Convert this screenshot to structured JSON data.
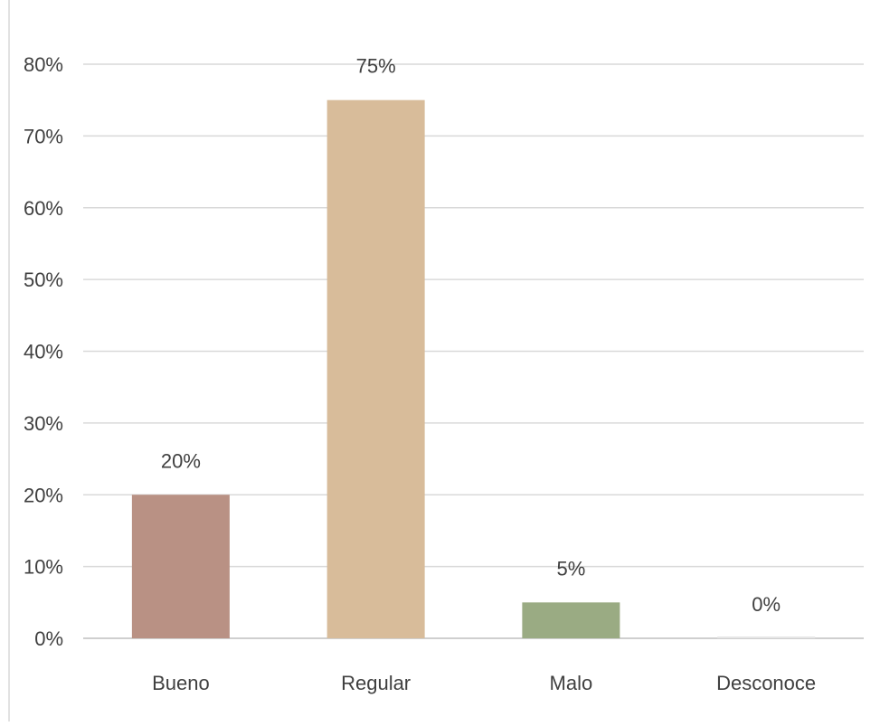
{
  "chart_data": {
    "type": "bar",
    "categories": [
      "Bueno",
      "Regular",
      "Malo",
      "Desconoce"
    ],
    "values": [
      20,
      75,
      5,
      0
    ],
    "data_labels": [
      "20%",
      "75%",
      "5%",
      "0%"
    ],
    "colors": [
      "#b99184",
      "#d8bc9a",
      "#9aab83",
      "#e6e6e6"
    ],
    "ylim": [
      0,
      80
    ],
    "yticks": [
      0,
      10,
      20,
      30,
      40,
      50,
      60,
      70,
      80
    ],
    "ytick_labels": [
      "0%",
      "10%",
      "20%",
      "30%",
      "40%",
      "50%",
      "60%",
      "70%",
      "80%"
    ],
    "grid": true,
    "gridline_color": "#d9d9d9",
    "legend": "none",
    "title": "",
    "xlabel": "",
    "ylabel": ""
  }
}
